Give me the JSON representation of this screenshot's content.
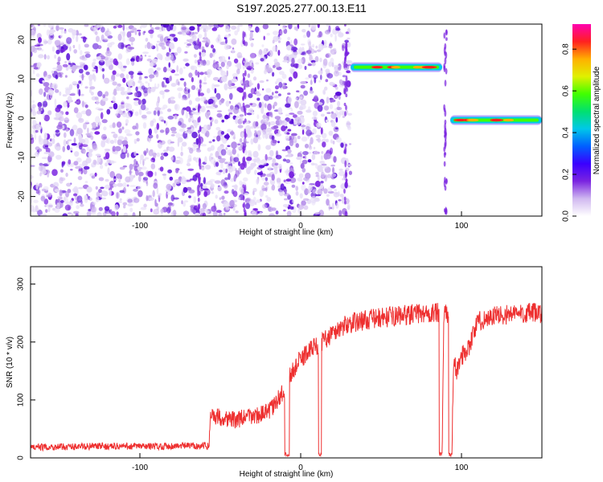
{
  "title": "S197.2025.277.00.13.E11",
  "chart_data": [
    {
      "type": "heatmap",
      "xlabel": "Height of straight line (km)",
      "ylabel": "Frequency (Hz)",
      "xlim": [
        -168,
        150
      ],
      "ylim": [
        -25,
        24
      ],
      "xticks": [
        -100,
        0,
        100
      ],
      "yticks": [
        -20,
        -10,
        0,
        10,
        20
      ],
      "grid": false,
      "noise_region": {
        "x": [
          -168,
          31
        ],
        "y": [
          -25,
          24
        ]
      },
      "tone_segments": [
        {
          "x": [
            31,
            88
          ],
          "y": 13
        },
        {
          "x": [
            93,
            150
          ],
          "y": -0.5
        }
      ],
      "colorbar": {
        "label": "Normalized spectral amplitude",
        "range": [
          0,
          0.92
        ],
        "ticks": [
          0.0,
          0.2,
          0.4,
          0.6,
          0.8
        ],
        "colors": [
          "#ffffff",
          "#d0b8f0",
          "#7a24e0",
          "#3a00ff",
          "#0060ff",
          "#00c8e8",
          "#00e070",
          "#40ff00",
          "#e0f000",
          "#ffb000",
          "#ff2020",
          "#ff00b0"
        ],
        "position": "right"
      }
    },
    {
      "type": "line",
      "xlabel": "Height of straight line (km)",
      "ylabel": "SNR (10 * v/v)",
      "xlim": [
        -168,
        150
      ],
      "ylim": [
        0,
        330
      ],
      "xticks": [
        -100,
        0,
        100
      ],
      "yticks": [
        0,
        100,
        200,
        300
      ],
      "grid": false,
      "color": "#ee3030",
      "series": [
        {
          "x": [
            -168,
            -150,
            -130,
            -110,
            -90,
            -70,
            -57,
            -56,
            -50,
            -45,
            -40,
            -35,
            -30,
            -25,
            -20,
            -15,
            -10,
            -5,
            0,
            5,
            10,
            15,
            20,
            25,
            30,
            40,
            50,
            60,
            70,
            80,
            84,
            85,
            86,
            87,
            88,
            89,
            90,
            91,
            92,
            93,
            94,
            95,
            97,
            100,
            105,
            110,
            120,
            130,
            140,
            150
          ],
          "y": [
            18,
            19,
            20,
            20,
            20,
            21,
            21,
            75,
            70,
            68,
            65,
            70,
            72,
            75,
            80,
            95,
            120,
            150,
            170,
            185,
            195,
            205,
            215,
            225,
            232,
            238,
            242,
            245,
            248,
            250,
            250,
            250,
            250,
            5,
            5,
            250,
            250,
            245,
            240,
            5,
            5,
            165,
            150,
            175,
            195,
            235,
            245,
            248,
            250,
            250
          ]
        }
      ],
      "dips": [
        {
          "x": [
            -10,
            -7
          ],
          "y": 5
        },
        {
          "x": [
            11,
            13
          ],
          "y": 5
        },
        {
          "x": [
            86,
            88
          ],
          "y": 5
        },
        {
          "x": [
            92,
            94
          ],
          "y": 5
        }
      ]
    }
  ]
}
